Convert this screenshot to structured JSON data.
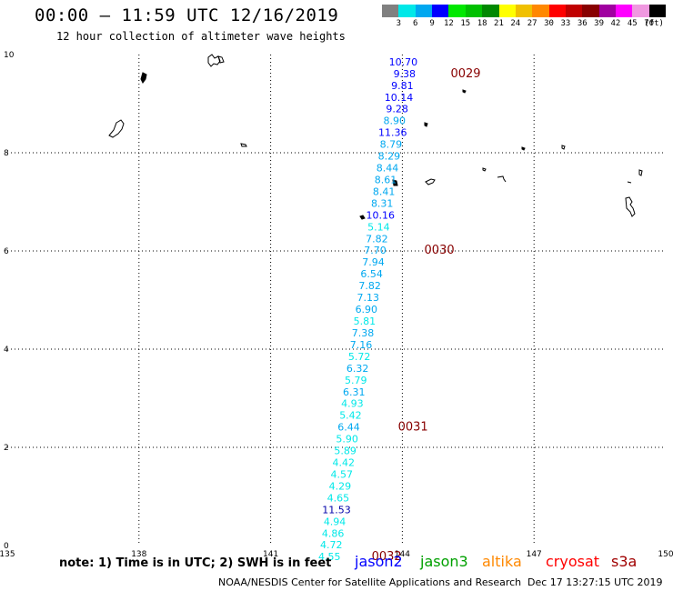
{
  "header": {
    "title": "00:00 – 11:59 UTC 12/16/2019",
    "subtitle": "12 hour collection of altimeter wave heights"
  },
  "scale": {
    "bins": [
      {
        "label": "3",
        "color": "#808080"
      },
      {
        "label": "6",
        "color": "#00e8e8"
      },
      {
        "label": "9",
        "color": "#00a8f0"
      },
      {
        "label": "12",
        "color": "#0000ff"
      },
      {
        "label": "15",
        "color": "#00e800"
      },
      {
        "label": "18",
        "color": "#00c000"
      },
      {
        "label": "21",
        "color": "#008800"
      },
      {
        "label": "24",
        "color": "#ffff00"
      },
      {
        "label": "27",
        "color": "#f0c000"
      },
      {
        "label": "30",
        "color": "#ff8800"
      },
      {
        "label": "33",
        "color": "#ff0000"
      },
      {
        "label": "36",
        "color": "#c00000"
      },
      {
        "label": "39",
        "color": "#880000"
      },
      {
        "label": "42",
        "color": "#a000a0"
      },
      {
        "label": "45",
        "color": "#ff00ff"
      },
      {
        "label": "70",
        "color": "#f098e0"
      },
      {
        "label": "(ft)",
        "color": "#000000"
      }
    ]
  },
  "axes": {
    "lon_ticks": [
      "135",
      "138",
      "141",
      "144",
      "147",
      "150"
    ],
    "lat_ticks": [
      "0",
      "2",
      "4",
      "6",
      "8",
      "10"
    ]
  },
  "track": {
    "points": [
      {
        "v": "10.70",
        "lon": 144.02,
        "lat": 9.78,
        "c": "#0000ff"
      },
      {
        "v": "9.38",
        "lon": 144.05,
        "lat": 9.54,
        "c": "#0000ff"
      },
      {
        "v": "9.81",
        "lon": 144.0,
        "lat": 9.3,
        "c": "#0000ff"
      },
      {
        "v": "10.14",
        "lon": 143.92,
        "lat": 9.06,
        "c": "#0000ff"
      },
      {
        "v": "9.28",
        "lon": 143.88,
        "lat": 8.82,
        "c": "#0000ff"
      },
      {
        "v": "8.90",
        "lon": 143.82,
        "lat": 8.58,
        "c": "#00a8f0"
      },
      {
        "v": "11.36",
        "lon": 143.78,
        "lat": 8.34,
        "c": "#0000ff"
      },
      {
        "v": "8.79",
        "lon": 143.74,
        "lat": 8.1,
        "c": "#00a8f0"
      },
      {
        "v": "8.29",
        "lon": 143.7,
        "lat": 7.86,
        "c": "#00a8f0"
      },
      {
        "v": "8.44",
        "lon": 143.66,
        "lat": 7.62,
        "c": "#00a8f0"
      },
      {
        "v": "8.61",
        "lon": 143.62,
        "lat": 7.38,
        "c": "#00a8f0"
      },
      {
        "v": "8.41",
        "lon": 143.58,
        "lat": 7.14,
        "c": "#00a8f0"
      },
      {
        "v": "8.31",
        "lon": 143.54,
        "lat": 6.9,
        "c": "#00a8f0"
      },
      {
        "v": "10.16",
        "lon": 143.5,
        "lat": 6.66,
        "c": "#0000ff"
      },
      {
        "v": "5.14",
        "lon": 143.46,
        "lat": 6.42,
        "c": "#00e8e8"
      },
      {
        "v": "7.82",
        "lon": 143.42,
        "lat": 6.18,
        "c": "#00a8f0"
      },
      {
        "v": "7.70",
        "lon": 143.38,
        "lat": 5.94,
        "c": "#00a8f0"
      },
      {
        "v": "7.94",
        "lon": 143.34,
        "lat": 5.7,
        "c": "#00a8f0"
      },
      {
        "v": "6.54",
        "lon": 143.3,
        "lat": 5.46,
        "c": "#00a8f0"
      },
      {
        "v": "7.82",
        "lon": 143.26,
        "lat": 5.22,
        "c": "#00a8f0"
      },
      {
        "v": "7.13",
        "lon": 143.22,
        "lat": 4.98,
        "c": "#00a8f0"
      },
      {
        "v": "6.90",
        "lon": 143.18,
        "lat": 4.74,
        "c": "#00a8f0"
      },
      {
        "v": "5.81",
        "lon": 143.14,
        "lat": 4.5,
        "c": "#00e8e8"
      },
      {
        "v": "7.38",
        "lon": 143.1,
        "lat": 4.26,
        "c": "#00a8f0"
      },
      {
        "v": "7.16",
        "lon": 143.06,
        "lat": 4.02,
        "c": "#00a8f0"
      },
      {
        "v": "5.72",
        "lon": 143.02,
        "lat": 3.78,
        "c": "#00e8e8"
      },
      {
        "v": "6.32",
        "lon": 142.98,
        "lat": 3.54,
        "c": "#00a8f0"
      },
      {
        "v": "5.79",
        "lon": 142.94,
        "lat": 3.3,
        "c": "#00e8e8"
      },
      {
        "v": "6.31",
        "lon": 142.9,
        "lat": 3.06,
        "c": "#00a8f0"
      },
      {
        "v": "4.93",
        "lon": 142.86,
        "lat": 2.82,
        "c": "#00e8e8"
      },
      {
        "v": "5.42",
        "lon": 142.82,
        "lat": 2.58,
        "c": "#00e8e8"
      },
      {
        "v": "6.44",
        "lon": 142.78,
        "lat": 2.34,
        "c": "#00a8f0"
      },
      {
        "v": "5.90",
        "lon": 142.74,
        "lat": 2.1,
        "c": "#00e8e8"
      },
      {
        "v": "5.89",
        "lon": 142.7,
        "lat": 1.86,
        "c": "#00e8e8"
      },
      {
        "v": "4.42",
        "lon": 142.66,
        "lat": 1.62,
        "c": "#00e8e8"
      },
      {
        "v": "4.57",
        "lon": 142.62,
        "lat": 1.38,
        "c": "#00e8e8"
      },
      {
        "v": "4.29",
        "lon": 142.58,
        "lat": 1.14,
        "c": "#00e8e8"
      },
      {
        "v": "4.65",
        "lon": 142.54,
        "lat": 0.9,
        "c": "#00e8e8"
      },
      {
        "v": "11.53",
        "lon": 142.5,
        "lat": 0.66,
        "c": "#0000aa"
      },
      {
        "v": "4.94",
        "lon": 142.46,
        "lat": 0.42,
        "c": "#00e8e8"
      },
      {
        "v": "4.86",
        "lon": 142.42,
        "lat": 0.18,
        "c": "#00e8e8"
      },
      {
        "v": "4.72",
        "lon": 142.38,
        "lat": -0.06,
        "c": "#00e8e8"
      },
      {
        "v": "4.55",
        "lon": 142.34,
        "lat": -0.3,
        "c": "#00e8e8"
      }
    ],
    "time_labels": [
      {
        "text": "0029",
        "lon": 145.1,
        "lat": 9.54
      },
      {
        "text": "0030",
        "lon": 144.5,
        "lat": 5.94
      },
      {
        "text": "0031",
        "lon": 143.9,
        "lat": 2.34
      },
      {
        "text": "0032",
        "lon": 143.3,
        "lat": -0.3
      }
    ],
    "time_label_color": "#880000"
  },
  "footer": {
    "note": "note: 1) Time is in UTC; 2) SWH is in feet",
    "satellites": [
      {
        "name": "jason2",
        "color": "#0000ff"
      },
      {
        "name": "jason3",
        "color": "#00a000"
      },
      {
        "name": "altika",
        "color": "#ff8800"
      },
      {
        "name": "cryosat",
        "color": "#ff0000"
      },
      {
        "name": "s3a",
        "color": "#a00000"
      }
    ],
    "credit": "NOAA/NESDIS Center for Satellite Applications and Research",
    "timestamp": "Dec 17 13:27:15 UTC 2019"
  }
}
